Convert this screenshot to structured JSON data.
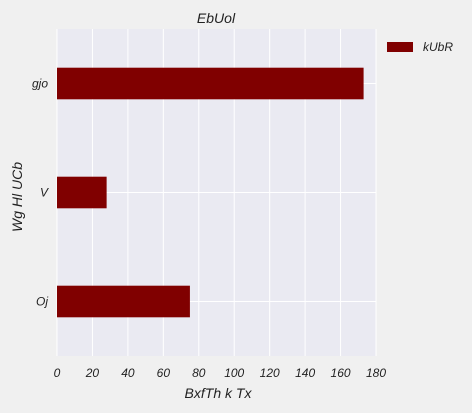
{
  "chart_data": {
    "type": "bar",
    "orientation": "horizontal",
    "title": "EbUol",
    "xlabel": "BxfTh k  Tx",
    "ylabel": "Wg Hl UCb",
    "categories": [
      "gjo",
      "V",
      "Oj"
    ],
    "series": [
      {
        "name": "kUbR",
        "values": [
          173,
          28,
          75
        ],
        "color": "#800000"
      }
    ],
    "xlim": [
      0,
      180
    ],
    "xticks": [
      0,
      20,
      40,
      60,
      80,
      100,
      120,
      140,
      160,
      180
    ],
    "grid": true,
    "legend_position": "outside-top-right"
  },
  "colors": {
    "page_background": "#f0f0f0",
    "plot_background": "#eaeaf2",
    "grid": "#ffffff",
    "bar": "#800000",
    "text": "#222222"
  }
}
